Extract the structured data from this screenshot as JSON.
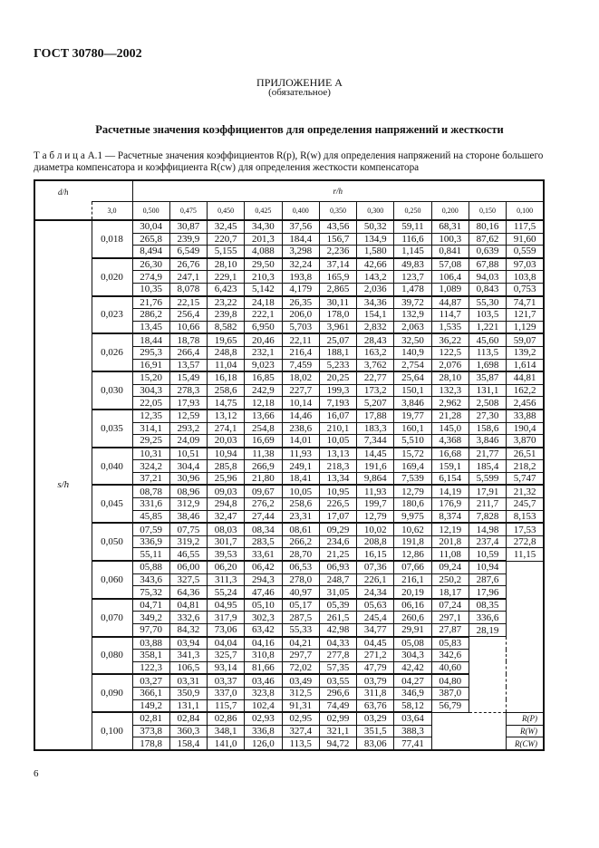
{
  "header": {
    "standard": "ГОСТ 30780—2002"
  },
  "appendix": {
    "title": "ПРИЛОЖЕНИЕ А",
    "status": "(обязательное)"
  },
  "section_title": "Расчетные значения коэффициентов для определения напряжений и жесткости",
  "caption": "Т а б л и ц а  А.1 — Расчетные значения коэффициентов R(p), R(w) для определения напряжений на стороне большего диаметра компенсатора и коэффициента R(cw) для определения жесткости компенсатора",
  "table": {
    "dh_label": "d/h",
    "rh_label": "r/h",
    "sh_label": "s/h",
    "dh_value": "3,0",
    "rh_values": [
      "0,500",
      "0,475",
      "0,450",
      "0,425",
      "0,400",
      "0,350",
      "0,300",
      "0,250",
      "0,200",
      "0,150",
      "0,100"
    ],
    "legend": [
      "R(P)",
      "R(W)",
      "R(CW)"
    ],
    "groups": [
      {
        "sh": "0,018",
        "rows": [
          [
            "30,04",
            "30,87",
            "32,45",
            "34,30",
            "37,56",
            "43,56",
            "50,32",
            "59,11",
            "68,31",
            "80,16",
            "117,5"
          ],
          [
            "265,8",
            "239,9",
            "220,7",
            "201,3",
            "184,4",
            "156,7",
            "134,9",
            "116,6",
            "100,3",
            "87,62",
            "91,60"
          ],
          [
            "8,494",
            "6,549",
            "5,155",
            "4,088",
            "3,298",
            "2,236",
            "1,580",
            "1,145",
            "0,841",
            "0,639",
            "0,559"
          ]
        ]
      },
      {
        "sh": "0,020",
        "rows": [
          [
            "26,30",
            "26,76",
            "28,10",
            "29,50",
            "32,24",
            "37,14",
            "42,66",
            "49,83",
            "57,08",
            "67,88",
            "97,03"
          ],
          [
            "274,9",
            "247,1",
            "229,1",
            "210,3",
            "193,8",
            "165,9",
            "143,2",
            "123,7",
            "106,4",
            "94,03",
            "103,8"
          ],
          [
            "10,35",
            "8,078",
            "6,423",
            "5,142",
            "4,179",
            "2,865",
            "2,036",
            "1,478",
            "1,089",
            "0,843",
            "0,753"
          ]
        ]
      },
      {
        "sh": "0,023",
        "rows": [
          [
            "21,76",
            "22,15",
            "23,22",
            "24,18",
            "26,35",
            "30,11",
            "34,36",
            "39,72",
            "44,87",
            "55,30",
            "74,71"
          ],
          [
            "286,2",
            "256,4",
            "239,8",
            "222,1",
            "206,0",
            "178,0",
            "154,1",
            "132,9",
            "114,7",
            "103,5",
            "121,7"
          ],
          [
            "13,45",
            "10,66",
            "8,582",
            "6,950",
            "5,703",
            "3,961",
            "2,832",
            "2,063",
            "1,535",
            "1,221",
            "1,129"
          ]
        ]
      },
      {
        "sh": "0,026",
        "rows": [
          [
            "18,44",
            "18,78",
            "19,65",
            "20,46",
            "22,11",
            "25,07",
            "28,43",
            "32,50",
            "36,22",
            "45,60",
            "59,07"
          ],
          [
            "295,3",
            "266,4",
            "248,8",
            "232,1",
            "216,4",
            "188,1",
            "163,2",
            "140,9",
            "122,5",
            "113,5",
            "139,2"
          ],
          [
            "16,91",
            "13,57",
            "11,04",
            "9,023",
            "7,459",
            "5,233",
            "3,762",
            "2,754",
            "2,076",
            "1,698",
            "1,614"
          ]
        ]
      },
      {
        "sh": "0,030",
        "rows": [
          [
            "15,20",
            "15,49",
            "16,18",
            "16,85",
            "18,02",
            "20,25",
            "22,77",
            "25,64",
            "28,10",
            "35,87",
            "44,81"
          ],
          [
            "304,3",
            "278,3",
            "258,6",
            "242,9",
            "227,7",
            "199,3",
            "173,2",
            "150,1",
            "132,3",
            "131,1",
            "162,2"
          ],
          [
            "22,05",
            "17,93",
            "14,75",
            "12,18",
            "10,14",
            "7,193",
            "5,207",
            "3,846",
            "2,962",
            "2,508",
            "2,456"
          ]
        ]
      },
      {
        "sh": "0,035",
        "rows": [
          [
            "12,35",
            "12,59",
            "13,12",
            "13,66",
            "14,46",
            "16,07",
            "17,88",
            "19,77",
            "21,28",
            "27,30",
            "33,88"
          ],
          [
            "314,1",
            "293,2",
            "274,1",
            "254,8",
            "238,6",
            "210,1",
            "183,3",
            "160,1",
            "145,0",
            "158,6",
            "190,4"
          ],
          [
            "29,25",
            "24,09",
            "20,03",
            "16,69",
            "14,01",
            "10,05",
            "7,344",
            "5,510",
            "4,368",
            "3,846",
            "3,870"
          ]
        ]
      },
      {
        "sh": "0,040",
        "rows": [
          [
            "10,31",
            "10,51",
            "10,94",
            "11,38",
            "11,93",
            "13,13",
            "14,45",
            "15,72",
            "16,68",
            "21,77",
            "26,51"
          ],
          [
            "324,2",
            "304,4",
            "285,8",
            "266,9",
            "249,1",
            "218,3",
            "191,6",
            "169,4",
            "159,1",
            "185,4",
            "218,2"
          ],
          [
            "37,21",
            "30,96",
            "25,96",
            "21,80",
            "18,41",
            "13,34",
            "9,864",
            "7,539",
            "6,154",
            "5,599",
            "5,747"
          ]
        ]
      },
      {
        "sh": "0,045",
        "rows": [
          [
            "08,78",
            "08,96",
            "09,03",
            "09,67",
            "10,05",
            "10,95",
            "11,93",
            "12,79",
            "14,19",
            "17,91",
            "21,32"
          ],
          [
            "331,6",
            "312,9",
            "294,8",
            "276,2",
            "258,6",
            "226,5",
            "199,7",
            "180,6",
            "176,9",
            "211,7",
            "245,7"
          ],
          [
            "45,85",
            "38,46",
            "32,47",
            "27,44",
            "23,31",
            "17,07",
            "12,79",
            "9,975",
            "8,374",
            "7,828",
            "8,153"
          ]
        ]
      },
      {
        "sh": "0,050",
        "rows": [
          [
            "07,59",
            "07,75",
            "08,03",
            "08,34",
            "08,61",
            "09,29",
            "10,02",
            "10,62",
            "12,19",
            "14,98",
            "17,53"
          ],
          [
            "336,9",
            "319,2",
            "301,7",
            "283,5",
            "266,2",
            "234,6",
            "208,8",
            "191,8",
            "201,8",
            "237,4",
            "272,8"
          ],
          [
            "55,11",
            "46,55",
            "39,53",
            "33,61",
            "28,70",
            "21,25",
            "16,15",
            "12,86",
            "11,08",
            "10,59",
            "11,15"
          ]
        ]
      },
      {
        "sh": "0,060",
        "rows": [
          [
            "05,88",
            "06,00",
            "06,20",
            "06,42",
            "06,53",
            "06,93",
            "07,36",
            "07,66",
            "09,24",
            "10,94"
          ],
          [
            "343,6",
            "327,5",
            "311,3",
            "294,3",
            "278,0",
            "248,7",
            "226,1",
            "216,1",
            "250,2",
            "287,6"
          ],
          [
            "75,32",
            "64,36",
            "55,24",
            "47,46",
            "40,97",
            "31,05",
            "24,34",
            "20,19",
            "18,17",
            "17,96"
          ]
        ]
      },
      {
        "sh": "0,070",
        "rows": [
          [
            "04,71",
            "04,81",
            "04,95",
            "05,10",
            "05,17",
            "05,39",
            "05,63",
            "06,16",
            "07,24",
            "08,35"
          ],
          [
            "349,2",
            "332,6",
            "317,9",
            "302,3",
            "287,5",
            "261,5",
            "245,4",
            "260,6",
            "297,1",
            "336,6"
          ],
          [
            "97,70",
            "84,32",
            "73,06",
            "63,42",
            "55,33",
            "42,98",
            "34,77",
            "29,91",
            "27,87",
            "28,19"
          ]
        ]
      },
      {
        "sh": "0,080",
        "rows": [
          [
            "03,88",
            "03,94",
            "04,04",
            "04,16",
            "04,21",
            "04,33",
            "04,45",
            "05,08",
            "05,83"
          ],
          [
            "358,1",
            "341,3",
            "325,7",
            "310,8",
            "297,7",
            "277,8",
            "271,2",
            "304,3",
            "342,6"
          ],
          [
            "122,3",
            "106,5",
            "93,14",
            "81,66",
            "72,02",
            "57,35",
            "47,79",
            "42,42",
            "40,60"
          ]
        ]
      },
      {
        "sh": "0,090",
        "rows": [
          [
            "03,27",
            "03,31",
            "03,37",
            "03,46",
            "03,49",
            "03,55",
            "03,79",
            "04,27",
            "04,80"
          ],
          [
            "366,1",
            "350,9",
            "337,0",
            "323,8",
            "312,5",
            "296,6",
            "311,8",
            "346,9",
            "387,0"
          ],
          [
            "149,2",
            "131,1",
            "115,7",
            "102,4",
            "91,31",
            "74,49",
            "63,76",
            "58,12",
            "56,79"
          ]
        ]
      },
      {
        "sh": "0,100",
        "rows": [
          [
            "02,81",
            "02,84",
            "02,86",
            "02,93",
            "02,95",
            "02,99",
            "03,29",
            "03,64"
          ],
          [
            "373,8",
            "360,3",
            "348,1",
            "336,8",
            "327,4",
            "321,1",
            "351,5",
            "388,3"
          ],
          [
            "178,8",
            "158,4",
            "141,0",
            "126,0",
            "113,5",
            "94,72",
            "83,06",
            "77,41"
          ]
        ]
      }
    ]
  },
  "page_number": "6"
}
